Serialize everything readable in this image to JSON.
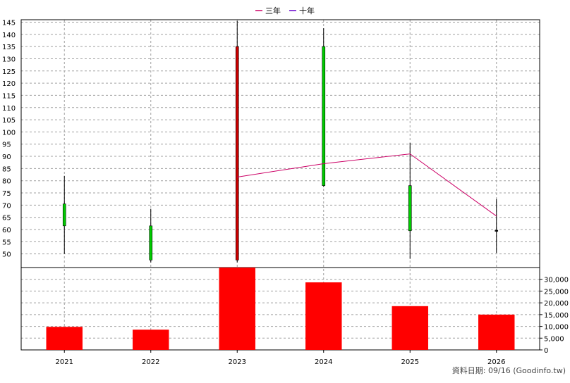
{
  "chart_data": {
    "type": "candlestick+bar",
    "legend": [
      {
        "name": "三年",
        "color": "#cc0066"
      },
      {
        "name": "十年",
        "color": "#6600cc"
      }
    ],
    "legend_position": "top-center",
    "grid": true,
    "years": [
      "2021",
      "2022",
      "2023",
      "2024",
      "2025",
      "2026"
    ],
    "price": {
      "ylim": [
        45,
        146
      ],
      "ticks": [
        50,
        55,
        60,
        65,
        70,
        75,
        80,
        85,
        90,
        95,
        100,
        105,
        110,
        115,
        120,
        125,
        130,
        135,
        140,
        145
      ],
      "candles": [
        {
          "open": 61.5,
          "close": 70.5,
          "high": 82,
          "low": 50,
          "color": "#00cc00"
        },
        {
          "open": 47.5,
          "close": 61.5,
          "high": 68.5,
          "low": 46.5,
          "color": "#00cc00"
        },
        {
          "open": 135,
          "close": 47.5,
          "high": 145.5,
          "low": 46.5,
          "color": "#cc0000"
        },
        {
          "open": 78,
          "close": 135,
          "high": 142.5,
          "low": 77.5,
          "color": "#00cc00"
        },
        {
          "open": 59.5,
          "close": 78,
          "high": 95.5,
          "low": 48,
          "color": "#00cc00"
        },
        {
          "open": 59.7,
          "close": 59.7,
          "high": 72.5,
          "low": 50.5,
          "color": "#000000"
        }
      ],
      "line_3y": {
        "x": [
          "2023",
          "2024",
          "2025",
          "2026"
        ],
        "values": [
          81.5,
          87,
          91,
          65.5
        ],
        "color": "#cc0066"
      }
    },
    "volume": {
      "ylim": [
        0,
        35000
      ],
      "ticks": [
        0,
        5000,
        10000,
        15000,
        20000,
        25000,
        30000
      ],
      "tick_labels": [
        "0",
        "5,000",
        "10,000",
        "15,000",
        "20,000",
        "25,000",
        "30,000"
      ],
      "values": [
        9800,
        8600,
        35000,
        28700,
        18600,
        15000
      ],
      "color": "#ff0000"
    }
  },
  "footer": "資料日期: 09/16  (Goodinfo.tw)"
}
